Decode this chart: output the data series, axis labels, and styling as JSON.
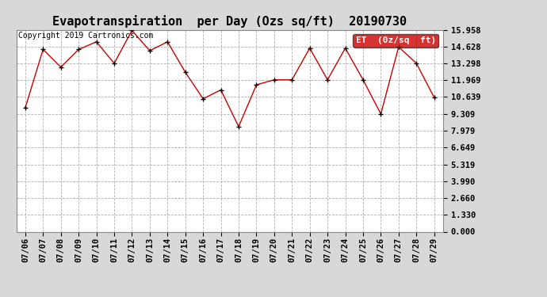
{
  "title": "Evapotranspiration  per Day (Ozs sq/ft)  20190730",
  "copyright_text": "Copyright 2019 Cartronics.com",
  "legend_label": "ET  (0z/sq  ft)",
  "legend_bg": "#cc0000",
  "legend_text_color": "#ffffff",
  "x_labels": [
    "07/06",
    "07/07",
    "07/08",
    "07/09",
    "07/10",
    "07/11",
    "07/12",
    "07/13",
    "07/14",
    "07/15",
    "07/16",
    "07/17",
    "07/18",
    "07/19",
    "07/20",
    "07/21",
    "07/22",
    "07/23",
    "07/24",
    "07/25",
    "07/26",
    "07/27",
    "07/28",
    "07/29"
  ],
  "y_values": [
    9.8,
    14.4,
    13.0,
    14.4,
    15.0,
    13.3,
    15.9,
    14.3,
    15.0,
    12.6,
    10.5,
    11.2,
    8.3,
    11.6,
    12.0,
    12.0,
    14.5,
    12.0,
    14.5,
    12.0,
    9.3,
    14.6,
    13.3,
    10.6
  ],
  "y_ticks": [
    0.0,
    1.33,
    2.66,
    3.99,
    5.319,
    6.649,
    7.979,
    9.309,
    10.639,
    11.969,
    13.298,
    14.628,
    15.958
  ],
  "y_max": 15.958,
  "y_min": 0.0,
  "line_color": "#cc0000",
  "marker_color": "#000000",
  "background_color": "#d8d8d8",
  "plot_bg_color": "#ffffff",
  "grid_color": "#b0b0b0",
  "title_fontsize": 11,
  "tick_fontsize": 7.5,
  "copyright_fontsize": 7
}
